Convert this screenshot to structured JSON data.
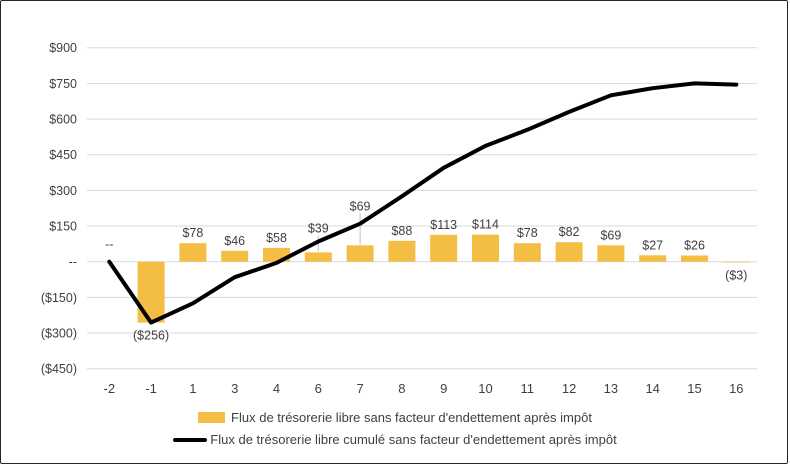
{
  "chart_data": {
    "type": "combo-bar-line",
    "categories": [
      "-2",
      "-1",
      "1",
      "3",
      "4",
      "6",
      "7",
      "8",
      "9",
      "10",
      "11",
      "12",
      "13",
      "14",
      "15",
      "16"
    ],
    "series": [
      {
        "name": "Flux de trésorerie libre sans facteur d'endettement après impôt",
        "type": "bar",
        "color": "#F4BD44",
        "values": [
          0,
          -256,
          78,
          46,
          58,
          39,
          69,
          88,
          113,
          114,
          78,
          82,
          69,
          27,
          26,
          -3
        ],
        "labels": [
          "--",
          "($256)",
          "$78",
          "$46",
          "$58",
          "$39",
          "$69",
          "$88",
          "$113",
          "$114",
          "$78",
          "$82",
          "$69",
          "$27",
          "$26",
          "($3)"
        ]
      },
      {
        "name": "Flux de trésorerie libre cumulé sans facteur d'endettement après impôt",
        "type": "line",
        "color": "#000000",
        "values": [
          0,
          -256,
          -175,
          -65,
          -5,
          85,
          160,
          275,
          395,
          487,
          555,
          630,
          700,
          730,
          750,
          745
        ]
      }
    ],
    "y_axis": {
      "min": -450,
      "max": 900,
      "step": 150,
      "ticks": [
        {
          "value": 900,
          "label": "$900"
        },
        {
          "value": 750,
          "label": "$750"
        },
        {
          "value": 600,
          "label": "$600"
        },
        {
          "value": 450,
          "label": "$450"
        },
        {
          "value": 300,
          "label": "$300"
        },
        {
          "value": 150,
          "label": "$150"
        },
        {
          "value": 0,
          "label": "--"
        },
        {
          "value": -150,
          "label": "($150)"
        },
        {
          "value": -300,
          "label": "($300)"
        },
        {
          "value": -450,
          "label": "($450)"
        }
      ]
    },
    "label_callouts": [
      {
        "index": 0,
        "dy": -7,
        "leader": false
      },
      {
        "index": 5,
        "dy": -14,
        "leader": true
      },
      {
        "index": 6,
        "dy": -29,
        "leader": true
      }
    ],
    "grid": true,
    "legend_position": "bottom",
    "colors": {
      "gridline": "#D9D9D9",
      "text": "#404040",
      "leader": "#BFBFBF",
      "background": "#FFFFFF"
    }
  }
}
